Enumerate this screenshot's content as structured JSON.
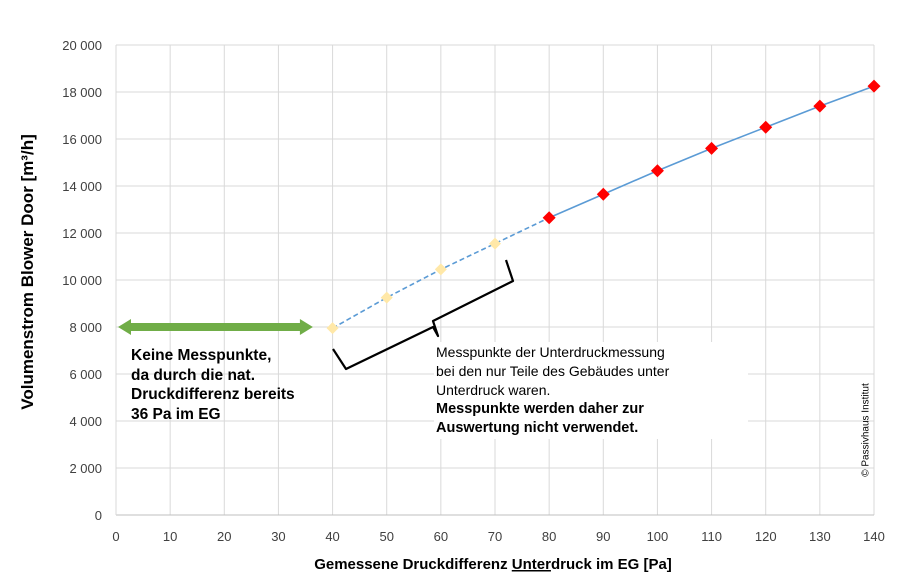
{
  "chart_data": {
    "type": "line",
    "xlabel_parts": [
      "Gemessene Druckdifferenz ",
      "Unter",
      "druck im EG [Pa]"
    ],
    "ylabel": "Volumenstrom  Blower  Door [m³/h]",
    "xlim": [
      0,
      140
    ],
    "ylim": [
      0,
      20000
    ],
    "x_ticks": [
      0,
      10,
      20,
      30,
      40,
      50,
      60,
      70,
      80,
      90,
      100,
      110,
      120,
      130,
      140
    ],
    "y_ticks": [
      0,
      2000,
      4000,
      6000,
      8000,
      10000,
      12000,
      14000,
      16000,
      18000,
      20000
    ],
    "y_tick_labels": [
      "0",
      "2 000",
      "4 000",
      "6 000",
      "8 000",
      "10 000",
      "12 000",
      "14 000",
      "16 000",
      "18 000",
      "20 000"
    ],
    "grid": true,
    "series": [
      {
        "style": "dashed",
        "marker": "diamond",
        "color": "#ffe8a8",
        "line_color": "#5b9bd5",
        "x": [
          40,
          50,
          60,
          70
        ],
        "y": [
          7950,
          9250,
          10450,
          11550
        ]
      },
      {
        "style": "solid",
        "marker": "diamond",
        "color": "#ff0000",
        "line_color": "#5b9bd5",
        "x": [
          80,
          90,
          100,
          110,
          120,
          130,
          140
        ],
        "y": [
          12650,
          13650,
          14650,
          15600,
          16500,
          17400,
          18250
        ]
      }
    ],
    "annotations": {
      "no_points": [
        "Keine Messpunkte,",
        "da durch die nat.",
        "Druckdifferenz bereits",
        "36 Pa im EG"
      ],
      "excluded": [
        "Messpunkte der Unterdruckmessung",
        "bei den nur  Teile des Gebäudes unter",
        "Unterdruck waren."
      ],
      "excluded_bold": [
        "Messpunkte werden daher zur",
        "Auswertung nicht verwendet."
      ],
      "arrow_range_x": [
        0,
        36
      ],
      "arrow_y": 8000,
      "arrow_color": "#70ad47"
    },
    "copyright": "© Passivhaus Institut"
  }
}
